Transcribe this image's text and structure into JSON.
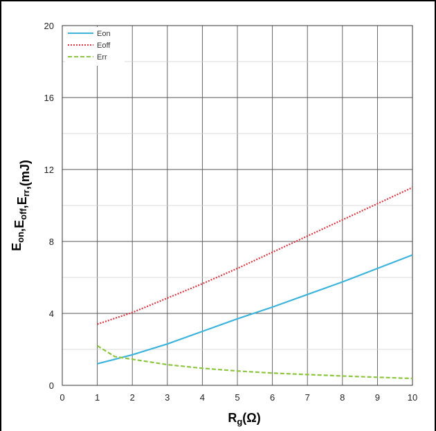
{
  "chart_data": {
    "type": "line",
    "xlabel": {
      "main": "R",
      "sub": "g",
      "tail": "(Ω)"
    },
    "ylabel": [
      {
        "main": "E",
        "sub": "on"
      },
      {
        "main": ",E",
        "sub": "off"
      },
      {
        "main": ",E",
        "sub": "rr"
      },
      {
        "main": ",(mJ)",
        "sub": ""
      }
    ],
    "xlim": [
      0,
      10
    ],
    "ylim": [
      0,
      20
    ],
    "xticks": [
      0,
      1,
      2,
      3,
      4,
      5,
      6,
      7,
      8,
      9,
      10
    ],
    "yticks": [
      0,
      4,
      8,
      12,
      16,
      20
    ],
    "grid": true,
    "legend_position": "top-left",
    "series": [
      {
        "name": "Eon",
        "color": "#3db4dc",
        "style": "solid",
        "x": [
          1,
          2,
          3,
          4,
          5,
          6,
          7,
          8,
          9,
          10
        ],
        "y": [
          1.2,
          1.7,
          2.3,
          3.0,
          3.7,
          4.35,
          5.05,
          5.75,
          6.5,
          7.25
        ]
      },
      {
        "name": "Eoff",
        "color": "#d9343f",
        "style": "dotted",
        "x": [
          1,
          2,
          3,
          4,
          5,
          6,
          7,
          8,
          9,
          10
        ],
        "y": [
          3.4,
          4.05,
          4.85,
          5.65,
          6.5,
          7.4,
          8.3,
          9.2,
          10.1,
          11.0
        ]
      },
      {
        "name": "Err",
        "color": "#8cc63f",
        "style": "dashed",
        "x": [
          1,
          1.5,
          2,
          3,
          4,
          5,
          6,
          7,
          8,
          9,
          10
        ],
        "y": [
          2.2,
          1.6,
          1.45,
          1.15,
          0.95,
          0.8,
          0.68,
          0.6,
          0.52,
          0.45,
          0.38
        ]
      }
    ]
  }
}
